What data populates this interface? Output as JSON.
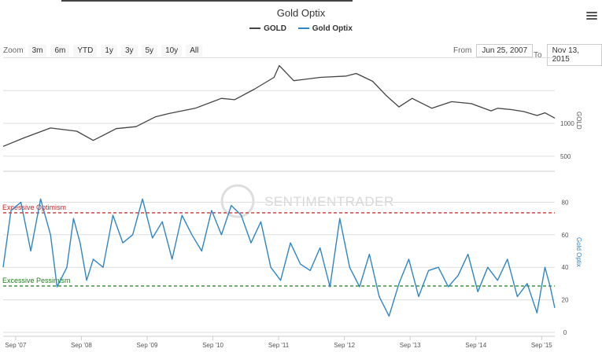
{
  "title": "Gold Optix",
  "menu_icon": "hamburger-icon",
  "legend": [
    {
      "label": "GOLD",
      "color": "#444444"
    },
    {
      "label": "Gold Optix",
      "color": "#2f86c6"
    }
  ],
  "zoom": {
    "label": "Zoom",
    "buttons": [
      "3m",
      "6m",
      "YTD",
      "1y",
      "3y",
      "5y",
      "10y",
      "All"
    ]
  },
  "range": {
    "from_label": "From",
    "from_value": "Jun 25, 2007",
    "to_label": "To",
    "to_value": "Nov 13, 2015"
  },
  "watermark": "SENTIMENTRADER",
  "chart_data": [
    {
      "type": "line",
      "title": "Gold Optix",
      "ylabel": "GOLD",
      "ylim": [
        0,
        2000
      ],
      "yticks": [
        500,
        1000
      ],
      "series": [
        {
          "name": "GOLD",
          "color": "#444444",
          "x": [
            2007.48,
            2007.8,
            2008.2,
            2008.6,
            2008.85,
            2009.2,
            2009.5,
            2009.8,
            2010.0,
            2010.4,
            2010.8,
            2011.0,
            2011.3,
            2011.6,
            2011.68,
            2011.9,
            2012.3,
            2012.7,
            2012.85,
            2013.1,
            2013.3,
            2013.5,
            2013.7,
            2014.0,
            2014.3,
            2014.6,
            2014.9,
            2015.0,
            2015.2,
            2015.4,
            2015.6,
            2015.72,
            2015.87
          ],
          "values": [
            650,
            780,
            930,
            880,
            740,
            920,
            950,
            1100,
            1150,
            1230,
            1380,
            1360,
            1520,
            1700,
            1880,
            1650,
            1700,
            1720,
            1760,
            1640,
            1430,
            1250,
            1380,
            1230,
            1330,
            1300,
            1190,
            1230,
            1210,
            1180,
            1120,
            1160,
            1080
          ]
        },
        {
          "name": "Gold Optix",
          "color": "#2f86c6",
          "x": [
            2007.48,
            2007.6,
            2007.75,
            2007.9,
            2008.05,
            2008.2,
            2008.3,
            2008.45,
            2008.55,
            2008.65,
            2008.75,
            2008.85,
            2009.0,
            2009.15,
            2009.3,
            2009.45,
            2009.6,
            2009.75,
            2009.9,
            2010.05,
            2010.2,
            2010.35,
            2010.5,
            2010.65,
            2010.8,
            2010.95,
            2011.1,
            2011.25,
            2011.4,
            2011.55,
            2011.7,
            2011.85,
            2012.0,
            2012.15,
            2012.3,
            2012.45,
            2012.6,
            2012.75,
            2012.9,
            2013.05,
            2013.2,
            2013.35,
            2013.5,
            2013.65,
            2013.8,
            2013.95,
            2014.1,
            2014.25,
            2014.4,
            2014.55,
            2014.7,
            2014.85,
            2015.0,
            2015.15,
            2015.3,
            2015.45,
            2015.6,
            2015.72,
            2015.8,
            2015.87
          ],
          "values": [
            40,
            75,
            80,
            50,
            82,
            60,
            28,
            40,
            70,
            55,
            32,
            45,
            40,
            72,
            55,
            60,
            82,
            58,
            68,
            45,
            72,
            60,
            50,
            75,
            60,
            78,
            72,
            55,
            68,
            40,
            32,
            55,
            42,
            38,
            52,
            28,
            70,
            40,
            28,
            48,
            22,
            10,
            30,
            45,
            22,
            38,
            40,
            28,
            35,
            48,
            25,
            40,
            32,
            45,
            22,
            30,
            12,
            40,
            28,
            15
          ]
        }
      ],
      "secondary_axis": {
        "ylabel": "Gold Optix",
        "ylim": [
          0,
          85
        ],
        "yticks": [
          0,
          20,
          40,
          60,
          80
        ]
      },
      "annotations": [
        {
          "label": "Excessive Optimism",
          "value": 73.5,
          "color": "#cc2222"
        },
        {
          "label": "Excessive Pessimism",
          "value": 28.5,
          "color": "#1e7d1e"
        }
      ],
      "x_ticks": [
        "Sep '07",
        "Sep '08",
        "Sep '09",
        "Sep '10",
        "Sep '11",
        "Sep '12",
        "Sep '13",
        "Sep '14",
        "Sep '15"
      ],
      "x_tick_values": [
        2007.67,
        2008.67,
        2009.67,
        2010.67,
        2011.67,
        2012.67,
        2013.67,
        2014.67,
        2015.67
      ],
      "grid": true
    }
  ]
}
